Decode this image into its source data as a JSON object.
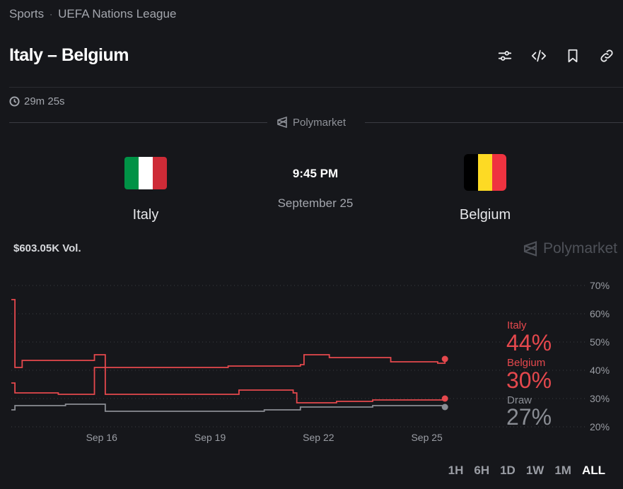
{
  "breadcrumb": {
    "category": "Sports",
    "separator": "·",
    "league": "UEFA Nations League"
  },
  "title": "Italy – Belgium",
  "toolbar": {
    "icons": [
      "sliders-icon",
      "embed-code-icon",
      "bookmark-icon",
      "link-icon"
    ]
  },
  "timer": {
    "icon": "clock-icon",
    "text": "29m 25s"
  },
  "source": {
    "name": "Polymarket"
  },
  "match": {
    "home": {
      "name": "Italy",
      "flag_colors": [
        "#009246",
        "#ffffff",
        "#ce2b37"
      ]
    },
    "away": {
      "name": "Belgium",
      "flag_colors": [
        "#000000",
        "#fdda24",
        "#ef3340"
      ]
    },
    "time": "9:45 PM",
    "date": "September 25"
  },
  "volume": "$603.05K Vol.",
  "watermark": "Polymarket",
  "chart_data": {
    "type": "line",
    "x_ticks": [
      "Sep 16",
      "Sep 19",
      "Sep 22",
      "Sep 25"
    ],
    "y_ticks": [
      "70%",
      "60%",
      "50%",
      "40%",
      "30%",
      "20%"
    ],
    "ylim": [
      20,
      70
    ],
    "grid": true,
    "series": [
      {
        "name": "Italy",
        "color": "#e5484d",
        "latest": "44%",
        "points": [
          [
            13.5,
            65
          ],
          [
            13.6,
            41
          ],
          [
            13.8,
            43.5
          ],
          [
            14.7,
            43.5
          ],
          [
            15.8,
            45.5
          ],
          [
            16.1,
            45.5
          ],
          [
            16.1,
            41
          ],
          [
            19.5,
            41.5
          ],
          [
            21.5,
            42
          ],
          [
            21.6,
            45.5
          ],
          [
            22.2,
            45.5
          ],
          [
            22.3,
            44.5
          ],
          [
            24.0,
            43
          ],
          [
            25.3,
            42.5
          ],
          [
            25.5,
            44
          ]
        ]
      },
      {
        "name": "Belgium",
        "color": "#e5484d",
        "latest": "30%",
        "points": [
          [
            13.5,
            35.5
          ],
          [
            13.6,
            32
          ],
          [
            14.8,
            31.5
          ],
          [
            15.8,
            32
          ],
          [
            15.8,
            41
          ],
          [
            16.1,
            41
          ],
          [
            16.1,
            31.5
          ],
          [
            19.0,
            31.5
          ],
          [
            19.8,
            33
          ],
          [
            21.3,
            32
          ],
          [
            21.4,
            28.5
          ],
          [
            22.5,
            29
          ],
          [
            23.5,
            29.5
          ],
          [
            25.3,
            29.5
          ],
          [
            25.5,
            30
          ]
        ]
      },
      {
        "name": "Draw",
        "color": "#8a8d94",
        "latest": "27%",
        "points": [
          [
            13.5,
            26
          ],
          [
            13.6,
            27.5
          ],
          [
            14.5,
            27.5
          ],
          [
            15.0,
            28
          ],
          [
            15.9,
            28
          ],
          [
            16.1,
            25.5
          ],
          [
            19.5,
            25.5
          ],
          [
            20.5,
            26
          ],
          [
            21.5,
            27
          ],
          [
            23.5,
            27.5
          ],
          [
            25.3,
            27.5
          ],
          [
            25.5,
            27
          ]
        ]
      }
    ]
  },
  "time_ranges": [
    "1H",
    "6H",
    "1D",
    "1W",
    "1M",
    "ALL"
  ],
  "active_range": "ALL"
}
